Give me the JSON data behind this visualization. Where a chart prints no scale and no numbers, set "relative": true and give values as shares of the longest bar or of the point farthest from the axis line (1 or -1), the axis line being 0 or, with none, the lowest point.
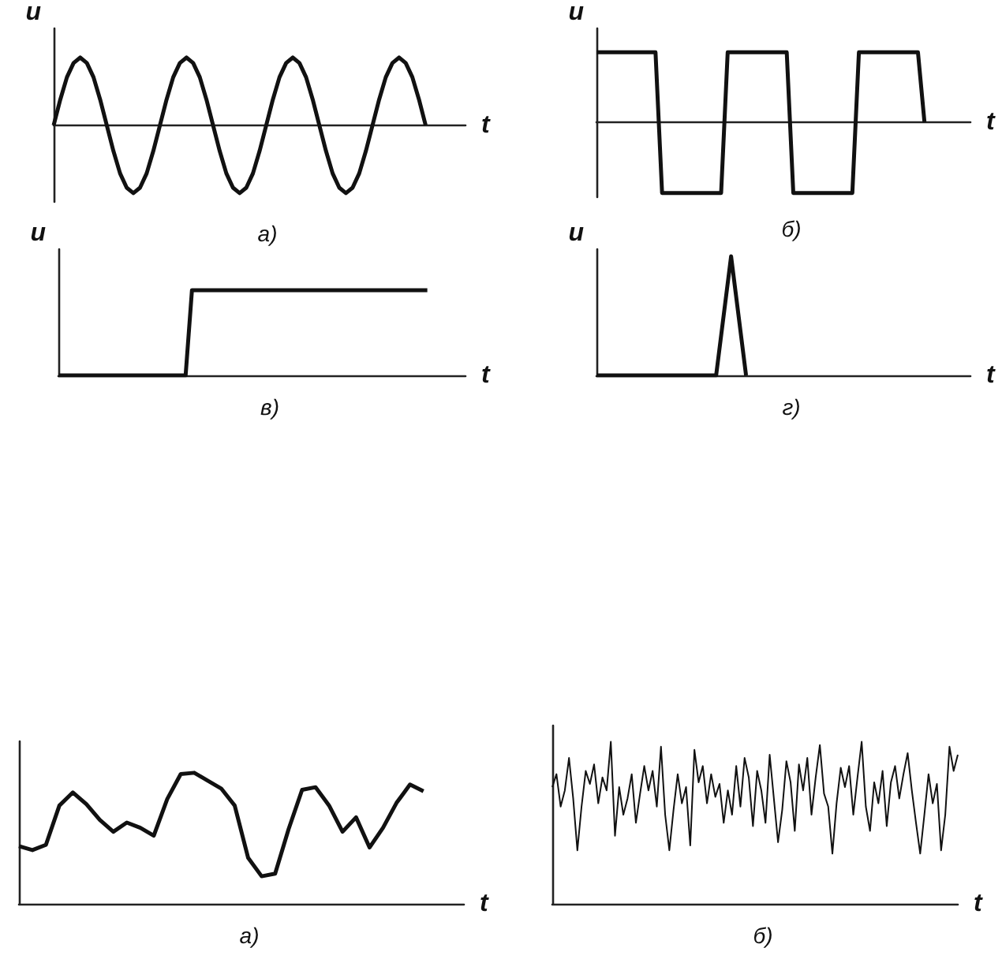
{
  "chart_data": [
    {
      "type": "line",
      "title": "а)",
      "xlabel": "t",
      "ylabel": "u",
      "relative": true,
      "color": "#111111",
      "categories": [
        null,
        null,
        null,
        null,
        null,
        null,
        null,
        null,
        null,
        null,
        null,
        null,
        null,
        null,
        null,
        null,
        null,
        null,
        null,
        null,
        null,
        null,
        null,
        null,
        null,
        null,
        null,
        null,
        null,
        null,
        null,
        null,
        null,
        null,
        null,
        null,
        null,
        null,
        null,
        null,
        null,
        null,
        null,
        null,
        null,
        null,
        null,
        null,
        null,
        null,
        null,
        null,
        null,
        null,
        null,
        null,
        null,
        null,
        null,
        null,
        null,
        null,
        null
      ],
      "values": [
        0,
        0.38,
        0.71,
        0.92,
        1,
        0.92,
        0.71,
        0.38,
        0,
        -0.38,
        -0.71,
        -0.92,
        -1,
        -0.92,
        -0.71,
        -0.38,
        0,
        0.38,
        0.71,
        0.92,
        1,
        0.92,
        0.71,
        0.38,
        0,
        -0.38,
        -0.71,
        -0.92,
        -1,
        -0.92,
        -0.71,
        -0.38,
        0,
        0.38,
        0.71,
        0.92,
        1,
        0.92,
        0.71,
        0.38,
        0,
        -0.38,
        -0.71,
        -0.92,
        -1,
        -0.92,
        -0.71,
        -0.38,
        0,
        0.38,
        0.71,
        0.92,
        1,
        0.92,
        0.71,
        0.38,
        0,
        null,
        null,
        null,
        null,
        null,
        null
      ]
    },
    {
      "type": "line",
      "title": "б)",
      "xlabel": "t",
      "ylabel": "u",
      "relative": true,
      "color": "#111111",
      "categories": [
        null,
        null,
        null,
        null,
        null,
        null,
        null,
        null,
        null,
        null,
        null,
        null,
        null,
        null,
        null,
        null,
        null,
        null,
        null,
        null,
        null,
        null,
        null,
        null,
        null,
        null,
        null,
        null,
        null,
        null,
        null,
        null,
        null,
        null,
        null,
        null,
        null,
        null,
        null,
        null,
        null,
        null,
        null,
        null,
        null,
        null,
        null,
        null,
        null,
        null,
        null,
        null,
        null,
        null,
        null,
        null,
        null,
        null
      ],
      "values": [
        1,
        1,
        1,
        1,
        1,
        1,
        1,
        1,
        1,
        1,
        -1,
        -1,
        -1,
        -1,
        -1,
        -1,
        -1,
        -1,
        -1,
        -1,
        1,
        1,
        1,
        1,
        1,
        1,
        1,
        1,
        1,
        1,
        -1,
        -1,
        -1,
        -1,
        -1,
        -1,
        -1,
        -1,
        -1,
        -1,
        1,
        1,
        1,
        1,
        1,
        1,
        1,
        1,
        1,
        1,
        0,
        null,
        null,
        null,
        null,
        null,
        null,
        null
      ]
    },
    {
      "type": "line",
      "title": "в)",
      "xlabel": "t",
      "ylabel": "u",
      "relative": true,
      "color": "#111111",
      "categories": [
        null,
        null,
        null,
        null,
        null,
        null,
        null,
        null,
        null,
        null,
        null,
        null,
        null,
        null,
        null,
        null,
        null,
        null,
        null,
        null,
        null,
        null,
        null,
        null,
        null,
        null,
        null,
        null,
        null,
        null,
        null,
        null,
        null,
        null,
        null,
        null,
        null,
        null,
        null,
        null,
        null,
        null,
        null,
        null,
        null,
        null,
        null,
        null,
        null,
        null,
        null,
        null,
        null,
        null,
        null,
        null,
        null,
        null,
        null,
        null,
        null,
        null,
        null,
        null,
        null
      ],
      "values": [
        0,
        0,
        0,
        0,
        0,
        0,
        0,
        0,
        0,
        0,
        0,
        0,
        0,
        0,
        0,
        0,
        0,
        0,
        0,
        0,
        0,
        1,
        1,
        1,
        1,
        1,
        1,
        1,
        1,
        1,
        1,
        1,
        1,
        1,
        1,
        1,
        1,
        1,
        1,
        1,
        1,
        1,
        1,
        1,
        1,
        1,
        1,
        1,
        1,
        1,
        1,
        1,
        1,
        1,
        1,
        1,
        1,
        1,
        1,
        null,
        null,
        null,
        null,
        null,
        null
      ]
    },
    {
      "type": "line",
      "title": "г)",
      "xlabel": "t",
      "ylabel": "u",
      "relative": true,
      "color": "#111111",
      "categories": [
        null,
        null,
        null,
        null,
        null,
        null,
        null,
        null,
        null,
        null,
        null,
        null,
        null,
        null,
        null,
        null,
        null,
        null,
        null,
        null,
        null,
        null,
        null,
        null,
        null,
        null
      ],
      "values": [
        0,
        0,
        0,
        0,
        0,
        0,
        0,
        0,
        0,
        1,
        0,
        null,
        null,
        null,
        null,
        null,
        null,
        null,
        null,
        null,
        null,
        null,
        null,
        null,
        null,
        null
      ]
    },
    {
      "type": "line",
      "title": "а)",
      "xlabel": "t",
      "relative": true,
      "color": "#111111",
      "categories": [
        null,
        null,
        null,
        null,
        null,
        null,
        null,
        null,
        null,
        null,
        null,
        null,
        null,
        null,
        null,
        null,
        null,
        null,
        null,
        null,
        null,
        null,
        null,
        null,
        null,
        null,
        null,
        null,
        null,
        null,
        null,
        null,
        null,
        null
      ],
      "values": [
        0.44,
        0.41,
        0.45,
        0.75,
        0.85,
        0.76,
        0.64,
        0.55,
        0.62,
        0.58,
        0.52,
        0.8,
        0.99,
        1,
        0.94,
        0.88,
        0.75,
        0.35,
        0.21,
        0.23,
        0.57,
        0.87,
        0.89,
        0.75,
        0.55,
        0.66,
        0.43,
        0.58,
        0.77,
        0.91,
        0.86,
        null,
        null,
        null
      ]
    },
    {
      "type": "line",
      "title": "б)",
      "xlabel": "t",
      "relative": true,
      "color": "#111111",
      "categories": [
        null,
        null,
        null,
        null,
        null,
        null,
        null,
        null,
        null,
        null,
        null,
        null,
        null,
        null,
        null,
        null,
        null,
        null,
        null,
        null,
        null,
        null,
        null,
        null,
        null,
        null,
        null,
        null,
        null,
        null,
        null,
        null,
        null,
        null,
        null,
        null,
        null,
        null,
        null,
        null,
        null,
        null,
        null,
        null,
        null,
        null,
        null,
        null,
        null,
        null,
        null,
        null,
        null,
        null,
        null,
        null,
        null,
        null,
        null,
        null,
        null,
        null,
        null,
        null,
        null,
        null,
        null,
        null,
        null,
        null,
        null,
        null,
        null,
        null,
        null,
        null,
        null,
        null,
        null,
        null,
        null,
        null,
        null,
        null,
        null,
        null,
        null,
        null,
        null,
        null,
        null,
        null,
        null,
        null,
        null,
        null,
        null,
        null
      ],
      "values": [
        0.72,
        0.8,
        0.6,
        0.7,
        0.9,
        0.65,
        0.33,
        0.6,
        0.82,
        0.74,
        0.86,
        0.62,
        0.78,
        0.7,
        1,
        0.42,
        0.72,
        0.55,
        0.65,
        0.8,
        0.5,
        0.68,
        0.85,
        0.7,
        0.82,
        0.6,
        0.97,
        0.55,
        0.33,
        0.58,
        0.8,
        0.62,
        0.72,
        0.36,
        0.95,
        0.75,
        0.85,
        0.62,
        0.8,
        0.66,
        0.74,
        0.5,
        0.7,
        0.55,
        0.85,
        0.6,
        0.9,
        0.78,
        0.48,
        0.82,
        0.7,
        0.5,
        0.92,
        0.65,
        0.38,
        0.58,
        0.88,
        0.75,
        0.45,
        0.86,
        0.7,
        0.9,
        0.55,
        0.78,
        0.98,
        0.68,
        0.6,
        0.31,
        0.62,
        0.84,
        0.72,
        0.85,
        0.55,
        0.78,
        1,
        0.6,
        0.45,
        0.75,
        0.62,
        0.82,
        0.48,
        0.75,
        0.85,
        0.65,
        0.8,
        0.93,
        0.7,
        0.5,
        0.31,
        0.55,
        0.8,
        0.62,
        0.74,
        0.33,
        0.55,
        0.97,
        0.82,
        0.92
      ]
    }
  ]
}
